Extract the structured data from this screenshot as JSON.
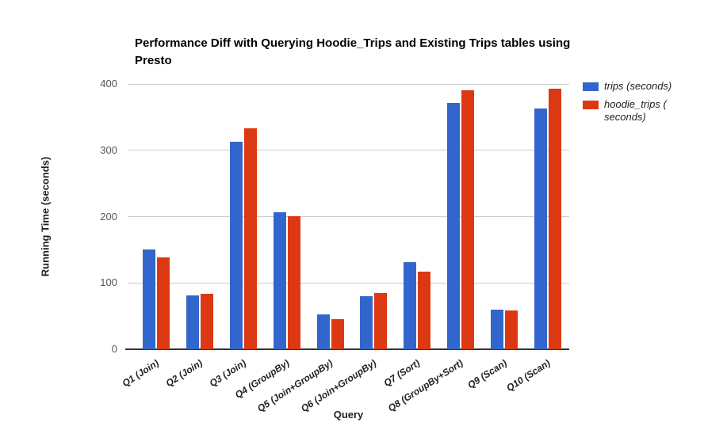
{
  "chart_data": {
    "type": "bar",
    "title": "Performance Diff with Querying Hoodie_Trips and Existing Trips tables using Presto",
    "xlabel": "Query",
    "ylabel": "Running Time (seconds)",
    "ylim": [
      0,
      400
    ],
    "yticks": [
      0,
      100,
      200,
      300,
      400
    ],
    "grid": true,
    "legend_position": "right",
    "categories": [
      "Q1 (Join)",
      "Q2 (Join)",
      "Q3 (Join)",
      "Q4 (GroupBy)",
      "Q5 (Join+GroupBy)",
      "Q6 (Join+GroupBy)",
      "Q7 (Sort)",
      "Q8 (GroupBy+Sort)",
      "Q9 (Scan)",
      "Q10 (Scan)"
    ],
    "series": [
      {
        "name": "trips (seconds)",
        "color": "#3366cc",
        "values": [
          150,
          81,
          313,
          207,
          52,
          80,
          131,
          371,
          60,
          363
        ]
      },
      {
        "name": "hoodie_trips ( seconds)",
        "color": "#dc3912",
        "values": [
          138,
          84,
          333,
          201,
          45,
          85,
          117,
          390,
          59,
          393
        ]
      }
    ]
  },
  "colors": {
    "grid": "#cccccc",
    "axis": "#333333",
    "tick_label": "#555555",
    "label_text": "#222222",
    "background": "#ffffff"
  }
}
